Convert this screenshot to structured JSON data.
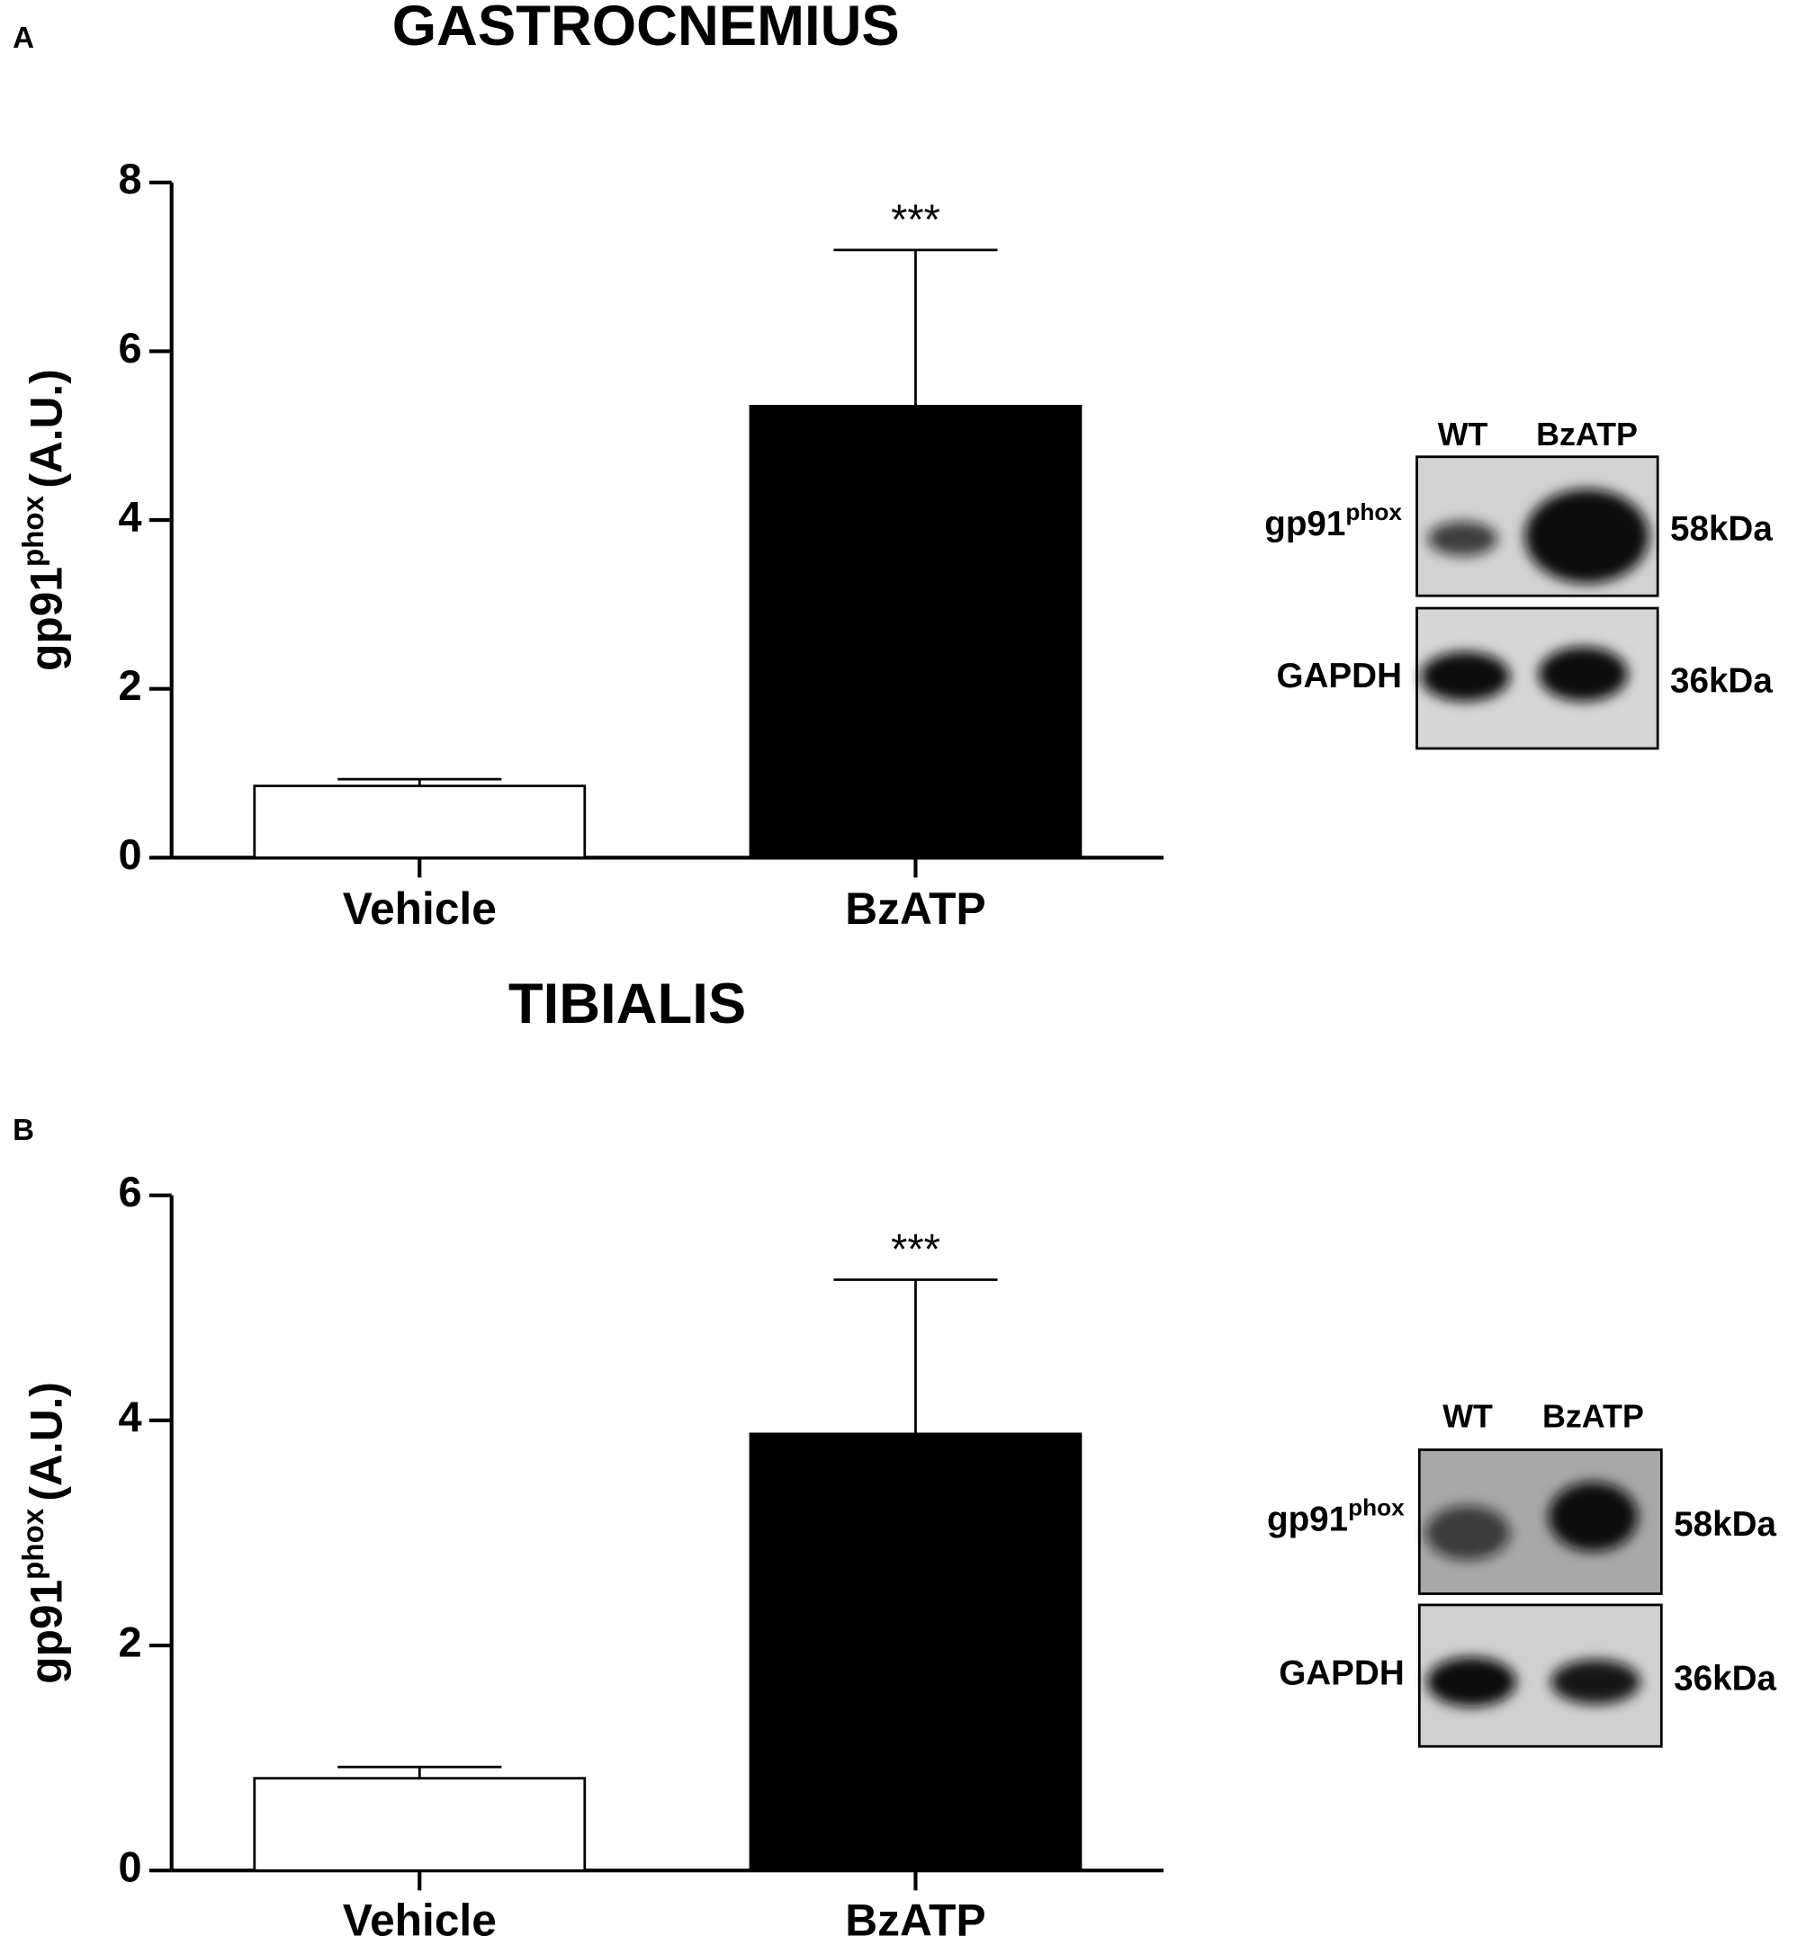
{
  "chart_data": [
    {
      "type": "bar",
      "panel": "A",
      "title": "GASTROCNEMIUS",
      "y_label": [
        "gp91",
        "phox",
        "(A.U.)"
      ],
      "categories": [
        "Vehicle",
        "BzATP"
      ],
      "values": [
        0.85,
        5.35
      ],
      "errors": [
        0.08,
        1.85
      ],
      "colors": [
        "#ffffff",
        "#000000"
      ],
      "value_annotations": [
        null,
        "***"
      ],
      "ylim": [
        0,
        8
      ],
      "yticks": [
        0,
        2,
        4,
        6,
        8
      ],
      "blot": {
        "lanes": [
          "WT",
          "BzATP"
        ],
        "bands": [
          {
            "name": "gp91",
            "sup": "phox",
            "size": "58kDa"
          },
          {
            "name": "GAPDH",
            "size": "36kDa"
          }
        ]
      }
    },
    {
      "type": "bar",
      "panel": "B",
      "title": "TIBIALIS",
      "y_label": [
        "gp91",
        "phox",
        "(A.U.)"
      ],
      "categories": [
        "Vehicle",
        "BzATP"
      ],
      "values": [
        0.82,
        3.88
      ],
      "errors": [
        0.1,
        1.37
      ],
      "colors": [
        "#ffffff",
        "#000000"
      ],
      "value_annotations": [
        null,
        "***"
      ],
      "ylim": [
        0,
        6
      ],
      "yticks": [
        0,
        2,
        4,
        6
      ],
      "blot": {
        "lanes": [
          "WT",
          "BzATP"
        ],
        "bands": [
          {
            "name": "gp91",
            "sup": "phox",
            "size": "58kDa"
          },
          {
            "name": "GAPDH",
            "size": "36kDa"
          }
        ]
      }
    }
  ]
}
